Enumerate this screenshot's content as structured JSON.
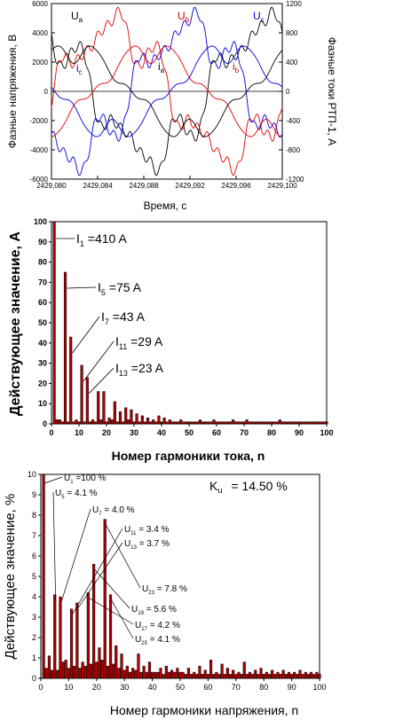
{
  "chart_data": [
    {
      "type": "line",
      "xlabel": "Время, с",
      "ylabel": "Фазные напряжения, В",
      "y2label": "Фазные токи РТП-1, А",
      "xlim": [
        2429.08,
        2429.1
      ],
      "ylim": [
        -6000,
        6000
      ],
      "y2lim": [
        -1200,
        1200
      ],
      "x_ticks": [
        "2429,080",
        "2429,084",
        "2429,088",
        "2429,092",
        "2429,096",
        "2429,100"
      ],
      "y_ticks": [
        "6000",
        "4000",
        "2000",
        "0",
        "-2000",
        "-4000",
        "-6000"
      ],
      "y2_ticks": [
        "1200",
        "800",
        "400",
        "0",
        "-400",
        "-800",
        "-1200"
      ],
      "period_s": 0.02,
      "series": [
        {
          "name": "Ua",
          "axis": "left",
          "color": "#000000",
          "amplitude": 5000,
          "phase_deg": 115
        },
        {
          "name": "Ub",
          "axis": "left",
          "color": "#e00000",
          "amplitude": 5000,
          "phase_deg": -5
        },
        {
          "name": "Uc",
          "axis": "left",
          "color": "#0000e0",
          "amplitude": 5000,
          "phase_deg": -125
        },
        {
          "name": "ia",
          "axis": "right",
          "color": "#000000",
          "amplitude": 560,
          "phase_deg": 55
        },
        {
          "name": "ib",
          "axis": "right",
          "color": "#e00000",
          "amplitude": 560,
          "phase_deg": -65
        },
        {
          "name": "ic",
          "axis": "right",
          "color": "#0000e0",
          "amplitude": 560,
          "phase_deg": 175
        }
      ],
      "labels": [
        {
          "text": "U",
          "sub": "a",
          "color": "#000000"
        },
        {
          "text": "U",
          "sub": "b",
          "color": "#e00000"
        },
        {
          "text": "U",
          "sub": "c",
          "color": "#0000e0"
        },
        {
          "text": "i",
          "sub": "a",
          "color": "#000000"
        },
        {
          "text": "i",
          "sub": "b",
          "color": "#e00000"
        },
        {
          "text": "i",
          "sub": "c",
          "color": "#0000e0"
        }
      ]
    },
    {
      "type": "bar",
      "xlabel": "Номер гармоники тока, n",
      "ylabel": "Действующее значение, А",
      "xlim": [
        0,
        100
      ],
      "ylim": [
        0,
        100
      ],
      "x_ticks": [
        0,
        10,
        20,
        30,
        40,
        50,
        60,
        70,
        80,
        90,
        100
      ],
      "y_ticks": [
        0,
        10,
        20,
        30,
        40,
        50,
        60,
        70,
        80,
        90,
        100
      ],
      "color": "#b00000",
      "x": [
        1,
        2,
        3,
        4,
        5,
        6,
        7,
        8,
        9,
        10,
        11,
        12,
        13,
        14,
        15,
        16,
        17,
        18,
        19,
        20,
        21,
        22,
        23,
        24,
        25,
        26,
        27,
        28,
        29,
        30,
        31,
        32,
        33,
        34,
        35,
        36,
        37,
        38,
        39,
        40,
        41,
        42,
        43,
        44,
        45,
        46,
        47,
        48,
        49,
        50,
        51,
        52,
        53,
        54,
        55,
        56,
        57,
        58,
        59,
        60,
        61,
        62,
        63,
        64,
        65,
        66,
        67,
        68,
        69,
        70,
        71,
        72,
        73,
        74,
        75,
        76,
        77,
        78,
        79,
        80,
        81,
        82,
        83,
        84,
        85,
        86,
        87,
        88,
        89,
        90,
        91,
        92,
        93,
        94,
        95,
        96,
        97,
        98,
        99,
        100
      ],
      "values": [
        100,
        2,
        2,
        1,
        75,
        1,
        43,
        1,
        2,
        1,
        29,
        1,
        23,
        1,
        2,
        1,
        16,
        2,
        16,
        1,
        3,
        2,
        11,
        1,
        6,
        1,
        8,
        2,
        7,
        1,
        5,
        1,
        4,
        1,
        3,
        1,
        2,
        1,
        4,
        1,
        3,
        1,
        2,
        1,
        1,
        1,
        2,
        1,
        1,
        1,
        1,
        1,
        1,
        2,
        1,
        1,
        1,
        1,
        2,
        1,
        1,
        1,
        1,
        1,
        1,
        2,
        1,
        1,
        1,
        1,
        2,
        1,
        1,
        1,
        1,
        1,
        1,
        1,
        1,
        1,
        1,
        1,
        2,
        1,
        1,
        1,
        1,
        1,
        1,
        1,
        1,
        1,
        1,
        1,
        1,
        1,
        1,
        1,
        1,
        1
      ],
      "annotations": [
        {
          "label": "I",
          "sub": "1",
          "value": " =410 A",
          "n": 1
        },
        {
          "label": "I",
          "sub": "5",
          "value": " =75 A",
          "n": 5
        },
        {
          "label": "I",
          "sub": "7",
          "value": " =43 A",
          "n": 7
        },
        {
          "label": "I",
          "sub": "11",
          "value": " =29 A",
          "n": 11
        },
        {
          "label": "I",
          "sub": "13",
          "value": " =23 A",
          "n": 13
        }
      ]
    },
    {
      "type": "bar",
      "xlabel": "Номер гармоники напряжения, n",
      "ylabel": "Действующее значение, %",
      "xlim": [
        0,
        100
      ],
      "ylim": [
        0,
        10
      ],
      "x_ticks": [
        0,
        10,
        20,
        30,
        40,
        50,
        60,
        70,
        80,
        90,
        100
      ],
      "y_ticks": [
        0,
        1,
        2,
        3,
        4,
        5,
        6,
        7,
        8,
        9,
        10
      ],
      "color": "#b00000",
      "k_label": "K",
      "k_sub": "u",
      "k_value": "= 14.50 %",
      "x": [
        1,
        2,
        3,
        4,
        5,
        6,
        7,
        8,
        9,
        10,
        11,
        12,
        13,
        14,
        15,
        16,
        17,
        18,
        19,
        20,
        21,
        22,
        23,
        24,
        25,
        26,
        27,
        28,
        29,
        30,
        31,
        32,
        33,
        34,
        35,
        36,
        37,
        38,
        39,
        40,
        41,
        42,
        43,
        44,
        45,
        46,
        47,
        48,
        49,
        50,
        51,
        52,
        53,
        54,
        55,
        56,
        57,
        58,
        59,
        60,
        61,
        62,
        63,
        64,
        65,
        66,
        67,
        68,
        69,
        70,
        71,
        72,
        73,
        74,
        75,
        76,
        77,
        78,
        79,
        80,
        81,
        82,
        83,
        84,
        85,
        86,
        87,
        88,
        89,
        90,
        91,
        92,
        93,
        94,
        95,
        96,
        97,
        98,
        99,
        100
      ],
      "values": [
        10,
        0.5,
        1.1,
        0.4,
        4.1,
        0.4,
        4.0,
        0.8,
        0.9,
        0.5,
        3.4,
        0.6,
        3.7,
        0.5,
        0.8,
        0.6,
        4.2,
        0.7,
        5.6,
        0.8,
        1.5,
        0.9,
        7.8,
        0.6,
        4.1,
        0.7,
        1.6,
        0.5,
        1.2,
        0.4,
        0.6,
        0.3,
        0.5,
        0.4,
        1.2,
        0.3,
        0.6,
        0.3,
        0.8,
        0.3,
        0.3,
        0.3,
        0.5,
        0.2,
        0.6,
        0.3,
        0.4,
        0.3,
        0.5,
        0.3,
        0.3,
        0.2,
        0.5,
        0.2,
        0.3,
        0.2,
        0.6,
        0.2,
        0.4,
        0.2,
        0.9,
        0.2,
        0.3,
        0.2,
        0.7,
        0.2,
        0.5,
        0.2,
        0.4,
        0.2,
        0.3,
        0.2,
        0.8,
        0.2,
        0.3,
        0.2,
        0.4,
        0.2,
        0.5,
        0.2,
        0.3,
        0.2,
        0.4,
        0.2,
        0.3,
        0.2,
        0.4,
        0.2,
        0.3,
        0.2,
        0.3,
        0.2,
        0.4,
        0.2,
        0.3,
        0.2,
        0.3,
        0.2,
        0.3,
        0.2
      ],
      "annotations": [
        {
          "label": "U",
          "sub": "1",
          "value": " =100 %",
          "n": 1
        },
        {
          "label": "U",
          "sub": "5",
          "value": " = 4.1 %",
          "n": 5
        },
        {
          "label": "U",
          "sub": "7",
          "value": " = 4.0 %",
          "n": 7
        },
        {
          "label": "U",
          "sub": "11",
          "value": " = 3.4 %",
          "n": 11
        },
        {
          "label": "U",
          "sub": "13",
          "value": " = 3.7 %",
          "n": 13
        },
        {
          "label": "U",
          "sub": "23",
          "value": " = 7.8 %",
          "n": 23
        },
        {
          "label": "U",
          "sub": "19",
          "value": " = 5.6 %",
          "n": 19
        },
        {
          "label": "U",
          "sub": "17",
          "value": " = 4.2 %",
          "n": 17
        },
        {
          "label": "U",
          "sub": "25",
          "value": " = 4.1 %",
          "n": 25
        }
      ]
    }
  ]
}
